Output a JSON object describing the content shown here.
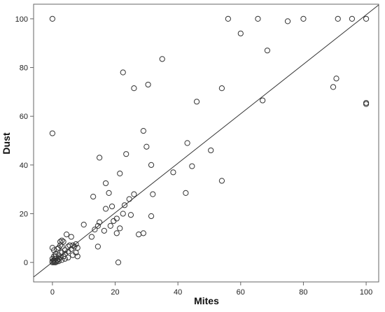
{
  "chart_data": {
    "type": "scatter",
    "xlabel": "Mites",
    "ylabel": "Dust",
    "xlim": [
      -6,
      104
    ],
    "ylim": [
      -8,
      106
    ],
    "x_ticks": [
      0,
      20,
      40,
      60,
      80,
      100
    ],
    "y_ticks": [
      0,
      20,
      40,
      60,
      80,
      100
    ],
    "grid": false,
    "legend": "none",
    "marker": "open-circle",
    "colors": {
      "points": "#333333",
      "fit_line": "#333333",
      "frame": "#666666"
    },
    "fit_line": {
      "x": [
        -6,
        104
      ],
      "y": [
        -6.0,
        105.7
      ]
    },
    "points": [
      [
        0,
        100
      ],
      [
        0,
        53
      ],
      [
        22.5,
        78
      ],
      [
        26,
        71.5
      ],
      [
        30.5,
        73
      ],
      [
        35,
        83.5
      ],
      [
        56,
        100
      ],
      [
        60,
        94
      ],
      [
        65.5,
        100
      ],
      [
        68.5,
        87
      ],
      [
        75,
        99
      ],
      [
        80,
        100
      ],
      [
        91,
        100
      ],
      [
        95.5,
        100
      ],
      [
        100,
        100
      ],
      [
        89.5,
        72
      ],
      [
        90.5,
        75.5
      ],
      [
        100,
        65.5
      ],
      [
        100,
        65
      ],
      [
        46,
        66
      ],
      [
        54,
        71.5
      ],
      [
        67,
        66.5
      ],
      [
        15,
        43
      ],
      [
        21.5,
        36.5
      ],
      [
        23.5,
        44.5
      ],
      [
        29,
        54
      ],
      [
        30,
        47.5
      ],
      [
        31.5,
        40
      ],
      [
        38.5,
        37
      ],
      [
        43,
        49
      ],
      [
        44.5,
        39.5
      ],
      [
        50.5,
        46
      ],
      [
        54,
        33.5
      ],
      [
        42.5,
        28.5
      ],
      [
        13,
        27
      ],
      [
        17,
        32.5
      ],
      [
        18,
        28.5
      ],
      [
        19,
        23
      ],
      [
        17,
        22
      ],
      [
        23,
        23.5
      ],
      [
        24.5,
        26
      ],
      [
        26,
        28
      ],
      [
        22.5,
        20
      ],
      [
        20.5,
        18
      ],
      [
        19.5,
        17
      ],
      [
        18.5,
        15
      ],
      [
        25,
        19.5
      ],
      [
        27.5,
        11.5
      ],
      [
        31.5,
        19
      ],
      [
        32,
        28
      ],
      [
        29,
        12
      ],
      [
        10,
        15.5
      ],
      [
        12.5,
        10.5
      ],
      [
        15,
        16.5
      ],
      [
        14.5,
        15
      ],
      [
        13.5,
        13.5
      ],
      [
        16.5,
        13
      ],
      [
        21.5,
        14
      ],
      [
        20.5,
        12
      ],
      [
        14.5,
        6.5
      ],
      [
        21,
        0
      ],
      [
        0,
        6
      ],
      [
        0.5,
        5
      ],
      [
        1.5,
        5.5
      ],
      [
        2.5,
        7
      ],
      [
        3.5,
        8.5
      ],
      [
        4.5,
        11.5
      ],
      [
        6,
        10.5
      ],
      [
        2,
        3
      ],
      [
        1,
        2.5
      ],
      [
        3,
        4
      ],
      [
        4,
        3.5
      ],
      [
        5,
        4.5
      ],
      [
        5.5,
        7
      ],
      [
        6,
        5.5
      ],
      [
        7,
        6.5
      ],
      [
        8,
        6
      ],
      [
        7.5,
        4
      ],
      [
        8,
        2.5
      ],
      [
        6.5,
        3
      ],
      [
        5,
        2
      ],
      [
        4,
        1.5
      ],
      [
        3,
        1
      ],
      [
        2,
        1.5
      ],
      [
        1,
        0.5
      ],
      [
        0.5,
        1
      ],
      [
        0,
        0
      ],
      [
        0.5,
        0
      ],
      [
        1,
        0
      ],
      [
        1.5,
        0.5
      ],
      [
        0,
        1.5
      ],
      [
        0.5,
        2.5
      ],
      [
        1,
        3.5
      ],
      [
        2,
        6
      ],
      [
        3,
        6.5
      ],
      [
        4,
        5
      ],
      [
        5,
        6.5
      ],
      [
        6.5,
        7
      ],
      [
        7.5,
        7.5
      ],
      [
        2.5,
        2
      ],
      [
        3.5,
        2.5
      ],
      [
        1.5,
        1
      ],
      [
        0,
        0.5
      ],
      [
        0.5,
        0.5
      ],
      [
        1,
        1.5
      ],
      [
        2,
        0.5
      ],
      [
        2.5,
        8.5
      ],
      [
        3,
        9
      ]
    ]
  }
}
